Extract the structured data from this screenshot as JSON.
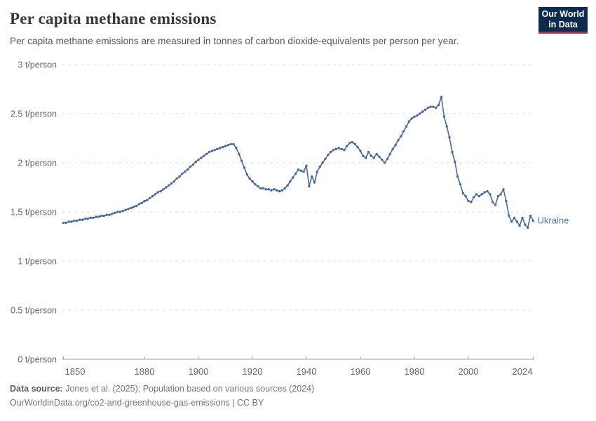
{
  "header": {
    "title": "Per capita methane emissions",
    "subtitle": "Per capita methane emissions are measured in tonnes of carbon dioxide-equivalents per person per year.",
    "logo_line1": "Our World",
    "logo_line2": "in Data",
    "logo_bg_color": "#0d2b4e",
    "logo_accent_color": "#b8322f"
  },
  "footer": {
    "source_label": "Data source:",
    "source_text": "Jones et al. (2025); Population based on various sources (2024)",
    "url_line": "OurWorldinData.org/co2-and-greenhouse-gas-emissions | CC BY"
  },
  "chart_data": {
    "type": "line",
    "title": "Per capita methane emissions",
    "unit": "t/person",
    "xlim": [
      1850,
      2024
    ],
    "ylim": [
      0,
      3
    ],
    "grid": "horizontal-dashed",
    "legend_position": "end-of-line",
    "xticks": [
      "1850",
      "1880",
      "1900",
      "1920",
      "1940",
      "1960",
      "1980",
      "2000",
      "2024"
    ],
    "xtick_years": [
      1850,
      1880,
      1900,
      1920,
      1940,
      1960,
      1980,
      2000,
      2024
    ],
    "yticks": [
      {
        "value": 0,
        "label": "0 t/person"
      },
      {
        "value": 0.5,
        "label": "0.5 t/person"
      },
      {
        "value": 1,
        "label": "1 t/person"
      },
      {
        "value": 1.5,
        "label": "1.5 t/person"
      },
      {
        "value": 2,
        "label": "2 t/person"
      },
      {
        "value": 2.5,
        "label": "2.5 t/person"
      },
      {
        "value": 3,
        "label": "3 t/person"
      }
    ],
    "x_start_year": 1850,
    "x_step_years": 1,
    "series": [
      {
        "name": "Ukraine",
        "color": "#4a699c",
        "label_color": "#5b7699",
        "values": [
          1.39,
          1.39,
          1.4,
          1.4,
          1.41,
          1.41,
          1.42,
          1.42,
          1.43,
          1.43,
          1.44,
          1.44,
          1.45,
          1.45,
          1.46,
          1.46,
          1.47,
          1.47,
          1.48,
          1.49,
          1.5,
          1.5,
          1.51,
          1.52,
          1.53,
          1.54,
          1.55,
          1.56,
          1.58,
          1.59,
          1.61,
          1.62,
          1.64,
          1.66,
          1.68,
          1.7,
          1.71,
          1.73,
          1.75,
          1.77,
          1.79,
          1.81,
          1.84,
          1.86,
          1.89,
          1.91,
          1.93,
          1.96,
          1.98,
          2.01,
          2.03,
          2.05,
          2.07,
          2.09,
          2.11,
          2.12,
          2.13,
          2.14,
          2.15,
          2.16,
          2.17,
          2.18,
          2.19,
          2.19,
          2.15,
          2.09,
          2.02,
          1.95,
          1.88,
          1.84,
          1.81,
          1.78,
          1.76,
          1.74,
          1.74,
          1.73,
          1.73,
          1.72,
          1.73,
          1.72,
          1.71,
          1.72,
          1.74,
          1.77,
          1.81,
          1.85,
          1.89,
          1.93,
          1.92,
          1.91,
          1.97,
          1.76,
          1.86,
          1.8,
          1.91,
          1.96,
          2.0,
          2.04,
          2.08,
          2.11,
          2.13,
          2.14,
          2.15,
          2.14,
          2.13,
          2.17,
          2.2,
          2.21,
          2.19,
          2.16,
          2.12,
          2.07,
          2.05,
          2.11,
          2.07,
          2.05,
          2.09,
          2.06,
          2.03,
          2.0,
          2.04,
          2.09,
          2.14,
          2.18,
          2.23,
          2.27,
          2.32,
          2.37,
          2.42,
          2.45,
          2.47,
          2.48,
          2.5,
          2.52,
          2.54,
          2.56,
          2.57,
          2.57,
          2.56,
          2.59,
          2.67,
          2.47,
          2.37,
          2.26,
          2.11,
          2.01,
          1.86,
          1.78,
          1.69,
          1.66,
          1.61,
          1.6,
          1.65,
          1.68,
          1.66,
          1.68,
          1.7,
          1.71,
          1.68,
          1.6,
          1.57,
          1.66,
          1.68,
          1.73,
          1.61,
          1.46,
          1.4,
          1.44,
          1.4,
          1.36,
          1.44,
          1.37,
          1.34,
          1.46,
          1.41
        ]
      }
    ]
  }
}
